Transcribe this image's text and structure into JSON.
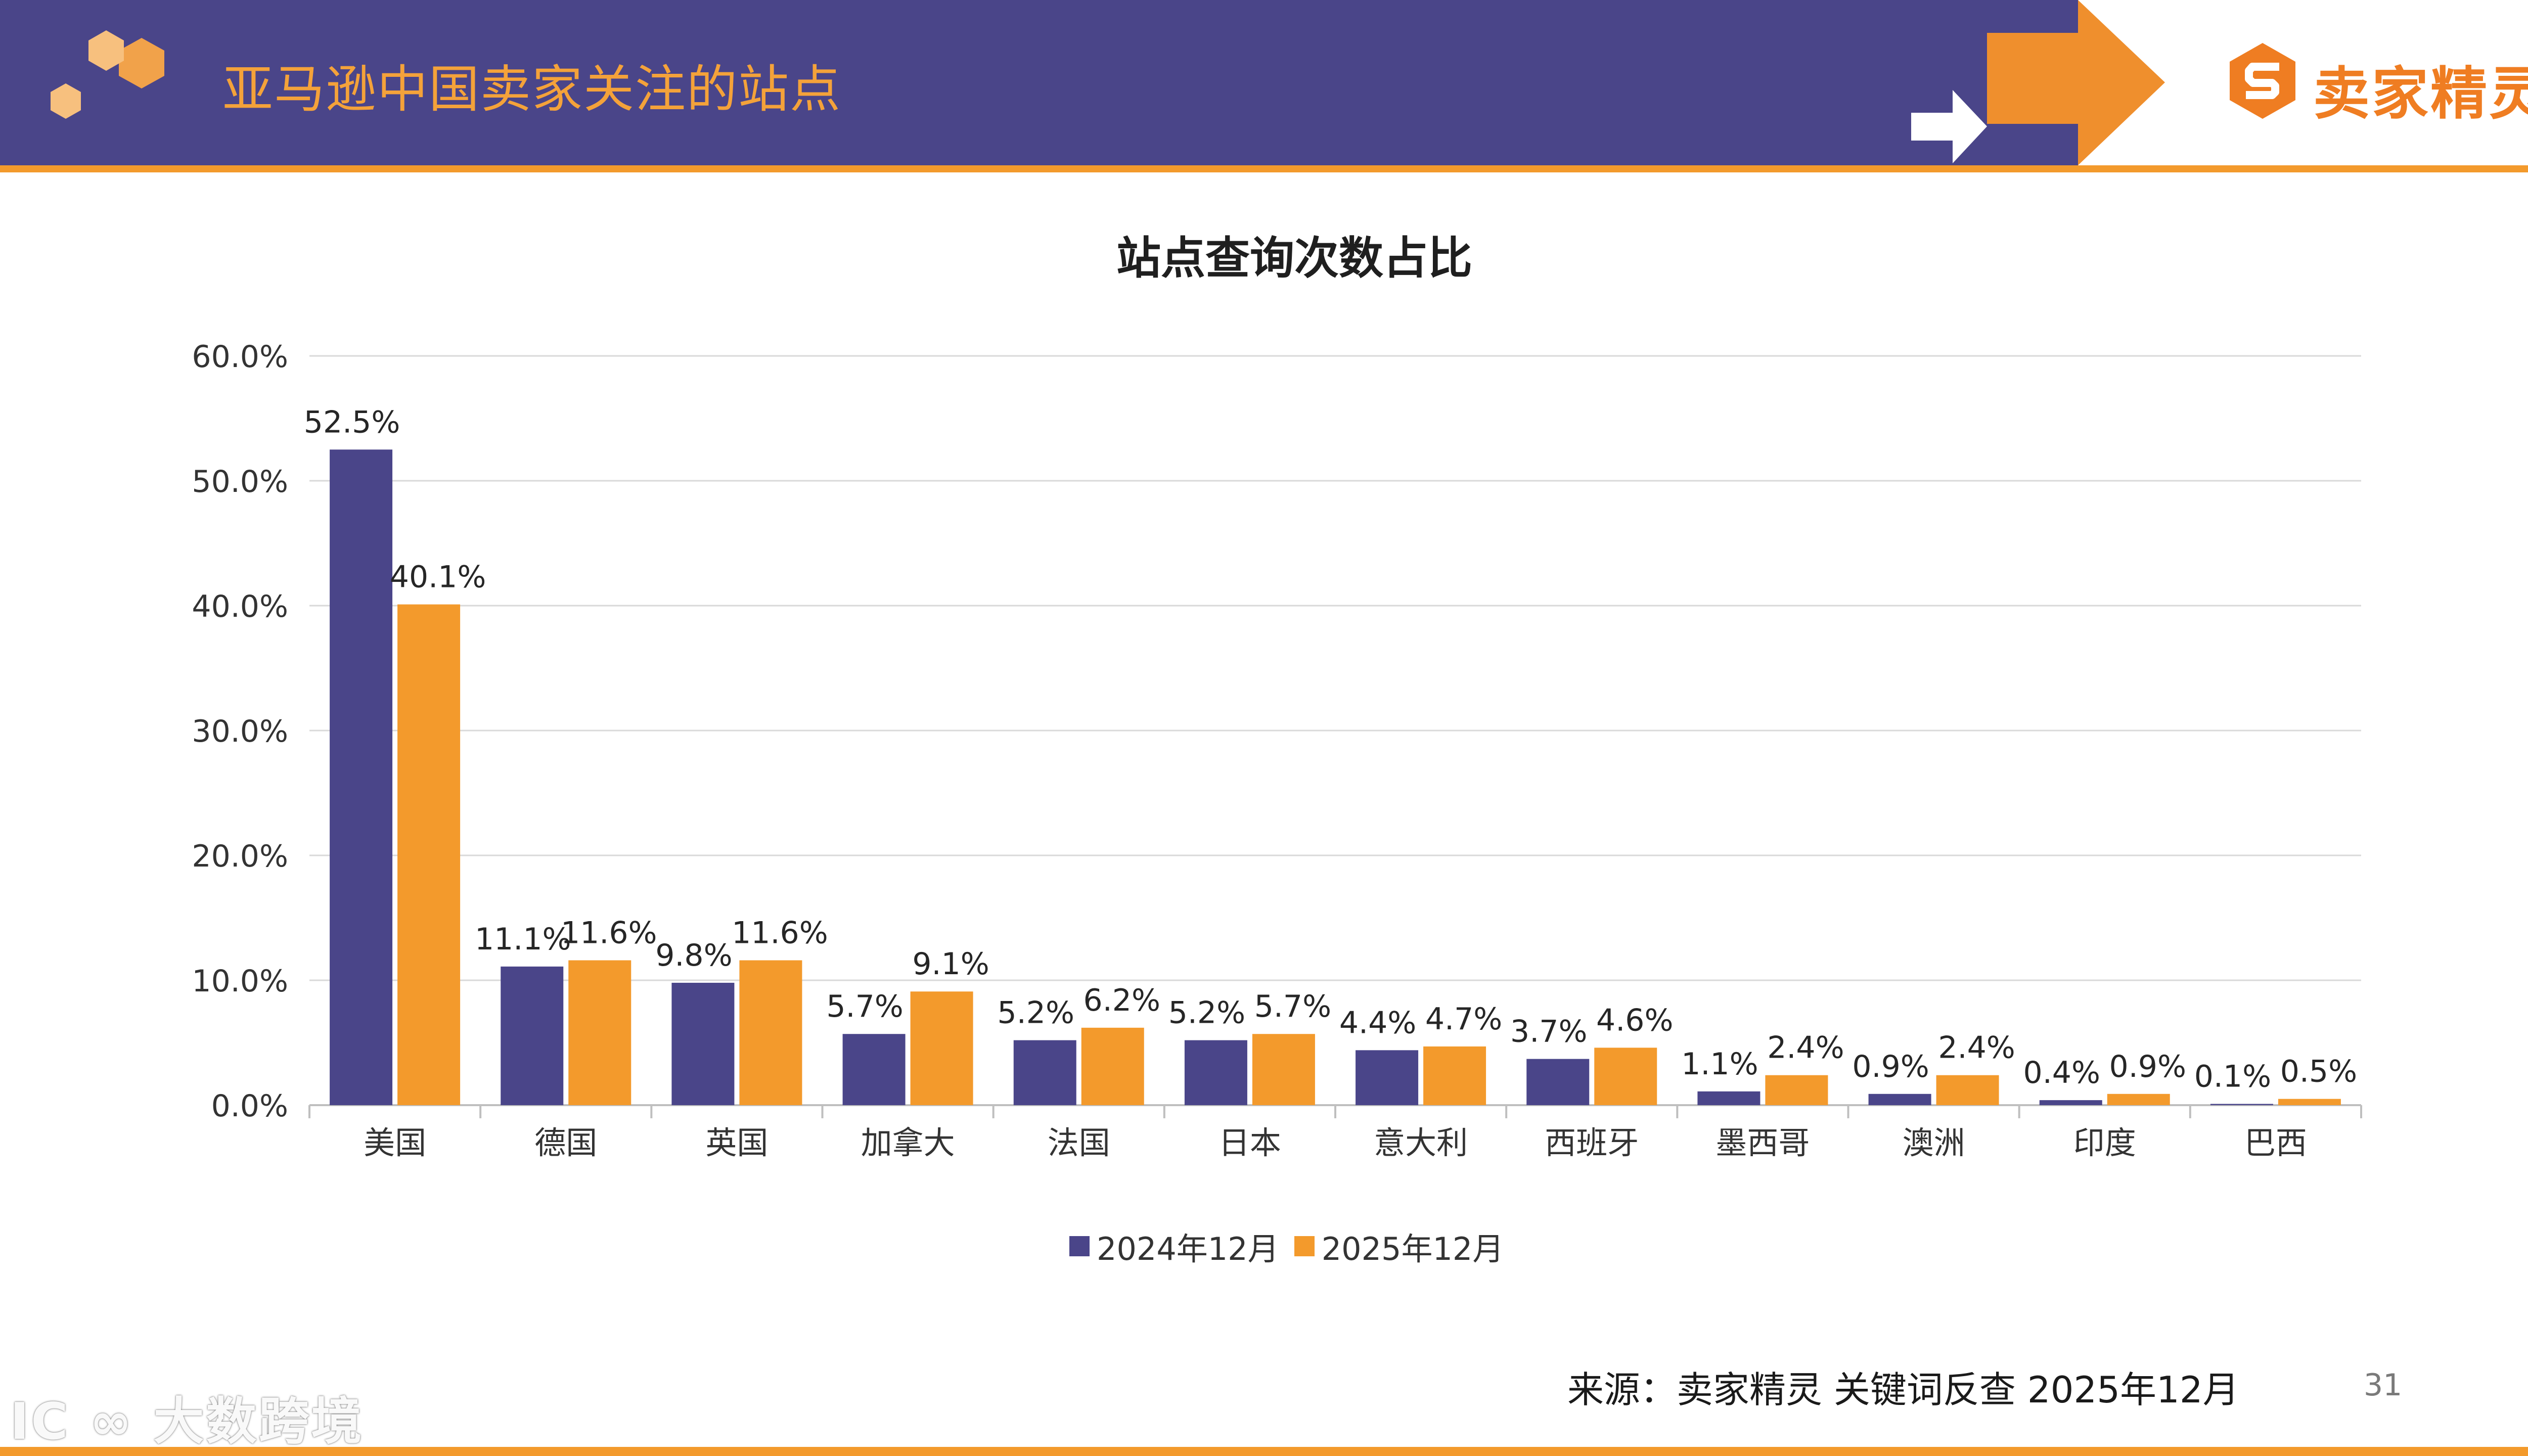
{
  "header": {
    "title": "亚马逊中国卖家关注的站点",
    "logo_text": "卖家精灵",
    "logo_icon": "seller-sprite-s-icon"
  },
  "colors": {
    "header_band": "#4a4589",
    "accent_orange": "#f39a2c",
    "series_2024": "#4a4589",
    "series_2025": "#f39a2c"
  },
  "chart_data": {
    "type": "bar",
    "title": "站点查询次数占比",
    "categories": [
      "美国",
      "德国",
      "英国",
      "加拿大",
      "法国",
      "日本",
      "意大利",
      "西班牙",
      "墨西哥",
      "澳洲",
      "印度",
      "巴西"
    ],
    "series": [
      {
        "name": "2024年12月",
        "values": [
          52.5,
          11.1,
          9.8,
          5.7,
          5.2,
          5.2,
          4.4,
          3.7,
          1.1,
          0.9,
          0.4,
          0.1
        ],
        "labels": [
          "52.5%",
          "11.1%",
          "9.8%",
          "5.7%",
          "5.2%",
          "5.2%",
          "4.4%",
          "3.7%",
          "1.1%",
          "0.9%",
          "0.4%",
          "0.1%"
        ]
      },
      {
        "name": "2025年12月",
        "values": [
          40.1,
          11.6,
          11.6,
          9.1,
          6.2,
          5.7,
          4.7,
          4.6,
          2.4,
          2.4,
          0.9,
          0.5
        ],
        "labels": [
          "40.1%",
          "11.6%",
          "11.6%",
          "9.1%",
          "6.2%",
          "5.7%",
          "4.7%",
          "4.6%",
          "2.4%",
          "2.4%",
          "0.9%",
          "0.5%"
        ]
      }
    ],
    "ylim": [
      0,
      60
    ],
    "yticks": [
      "0.0%",
      "10.0%",
      "20.0%",
      "30.0%",
      "40.0%",
      "50.0%",
      "60.0%"
    ],
    "xlabel": "",
    "ylabel": "",
    "grid": true,
    "legend": "bottom-center"
  },
  "footer": {
    "source": "来源：卖家精灵 关键词反查 2025年12月",
    "page_number": "31",
    "watermark": "大数跨境"
  }
}
